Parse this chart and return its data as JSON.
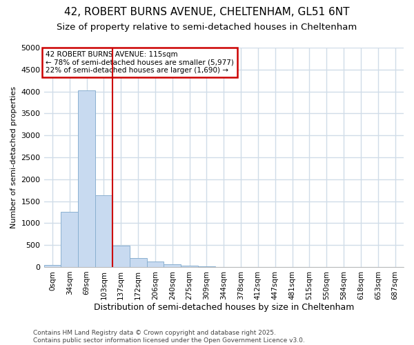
{
  "title_line1": "42, ROBERT BURNS AVENUE, CHELTENHAM, GL51 6NT",
  "title_line2": "Size of property relative to semi-detached houses in Cheltenham",
  "xlabel": "Distribution of semi-detached houses by size in Cheltenham",
  "ylabel": "Number of semi-detached properties",
  "categories": [
    "0sqm",
    "34sqm",
    "69sqm",
    "103sqm",
    "137sqm",
    "172sqm",
    "206sqm",
    "240sqm",
    "275sqm",
    "309sqm",
    "344sqm",
    "378sqm",
    "412sqm",
    "447sqm",
    "481sqm",
    "515sqm",
    "550sqm",
    "584sqm",
    "618sqm",
    "653sqm",
    "687sqm"
  ],
  "values": [
    50,
    1250,
    4020,
    1630,
    480,
    210,
    130,
    70,
    35,
    10,
    5,
    2,
    0,
    0,
    0,
    0,
    0,
    0,
    0,
    0,
    0
  ],
  "bar_color": "#c8daf0",
  "bar_edge_color": "#8ab0d0",
  "vline_x": 3.5,
  "vline_color": "#cc0000",
  "annotation_text": "42 ROBERT BURNS AVENUE: 115sqm\n← 78% of semi-detached houses are smaller (5,977)\n22% of semi-detached houses are larger (1,690) →",
  "annotation_box_color": "#ffffff",
  "annotation_box_edge": "#cc0000",
  "ylim": [
    0,
    5000
  ],
  "yticks": [
    0,
    500,
    1000,
    1500,
    2000,
    2500,
    3000,
    3500,
    4000,
    4500,
    5000
  ],
  "footnote": "Contains HM Land Registry data © Crown copyright and database right 2025.\nContains public sector information licensed under the Open Government Licence v3.0.",
  "bg_color": "#ffffff",
  "plot_bg_color": "#ffffff",
  "grid_color": "#d0dce8",
  "title_fontsize": 11,
  "subtitle_fontsize": 9.5,
  "tick_fontsize": 7.5,
  "xlabel_fontsize": 9,
  "ylabel_fontsize": 8,
  "footnote_fontsize": 6.5
}
